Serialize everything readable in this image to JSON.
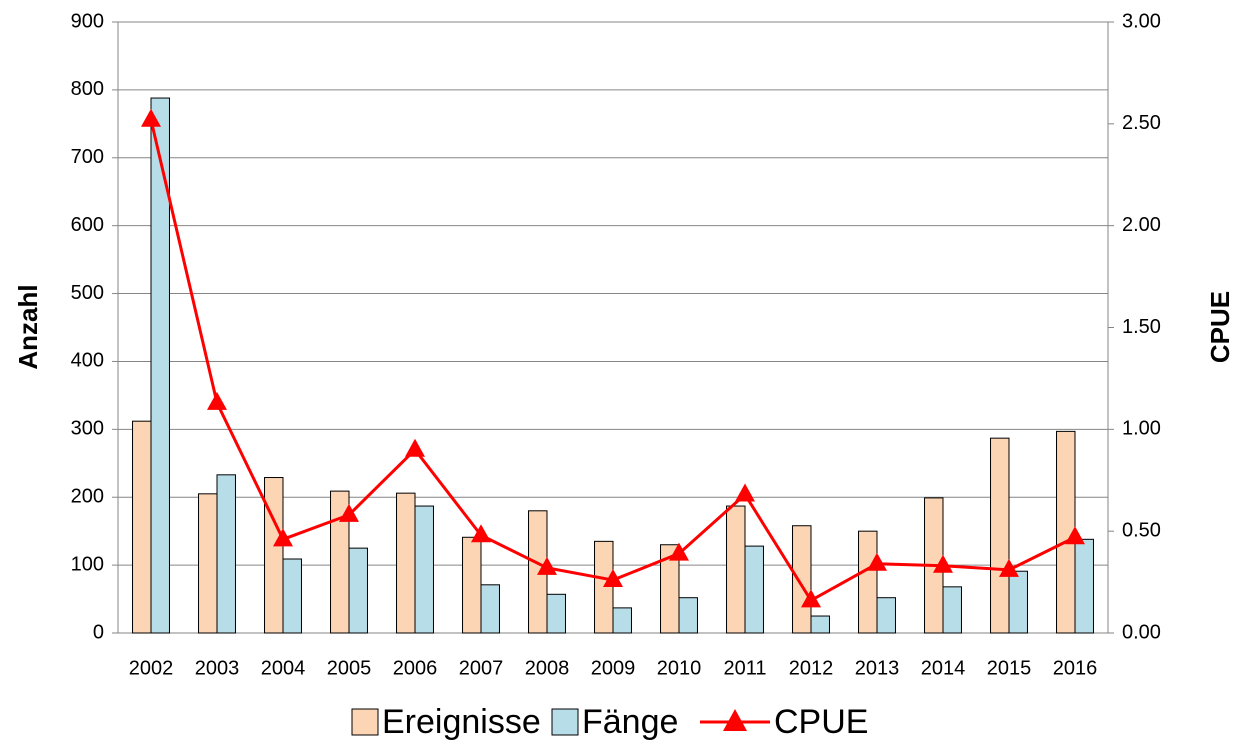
{
  "chart_data": {
    "type": "bar",
    "y_label": "Anzahl",
    "y2_label": "CPUE",
    "categories": [
      "2002",
      "2003",
      "2004",
      "2005",
      "2006",
      "2007",
      "2008",
      "2009",
      "2010",
      "2011",
      "2012",
      "2013",
      "2014",
      "2015",
      "2016"
    ],
    "series": [
      {
        "name": "Ereignisse",
        "type": "bar",
        "color": "#fcd5b5",
        "values": [
          312,
          205,
          229,
          209,
          206,
          141,
          180,
          135,
          130,
          187,
          158,
          150,
          199,
          287,
          297
        ]
      },
      {
        "name": "Fänge",
        "type": "bar",
        "color": "#b7dde8",
        "values": [
          788,
          233,
          109,
          125,
          187,
          71,
          57,
          37,
          52,
          128,
          25,
          52,
          68,
          91,
          138
        ]
      },
      {
        "name": "CPUE",
        "type": "line",
        "axis": "y2",
        "color": "#ff0000",
        "values": [
          2.52,
          1.13,
          0.46,
          0.58,
          0.9,
          0.48,
          0.32,
          0.26,
          0.39,
          0.68,
          0.16,
          0.34,
          0.33,
          0.31,
          0.47
        ]
      }
    ],
    "ylim": [
      0,
      900
    ],
    "yticks": [
      0,
      100,
      200,
      300,
      400,
      500,
      600,
      700,
      800,
      900
    ],
    "y2lim": [
      0,
      3
    ],
    "y2ticks": [
      {
        "value": 0,
        "label": "0.00"
      },
      {
        "value": 0.5,
        "label": "0.50"
      },
      {
        "value": 1,
        "label": "1.00"
      },
      {
        "value": 1.5,
        "label": "1.50"
      },
      {
        "value": 2,
        "label": "2.00"
      },
      {
        "value": 2.5,
        "label": "2.50"
      },
      {
        "value": 3,
        "label": "3.00"
      }
    ],
    "grid": true,
    "legend": "bottom"
  }
}
